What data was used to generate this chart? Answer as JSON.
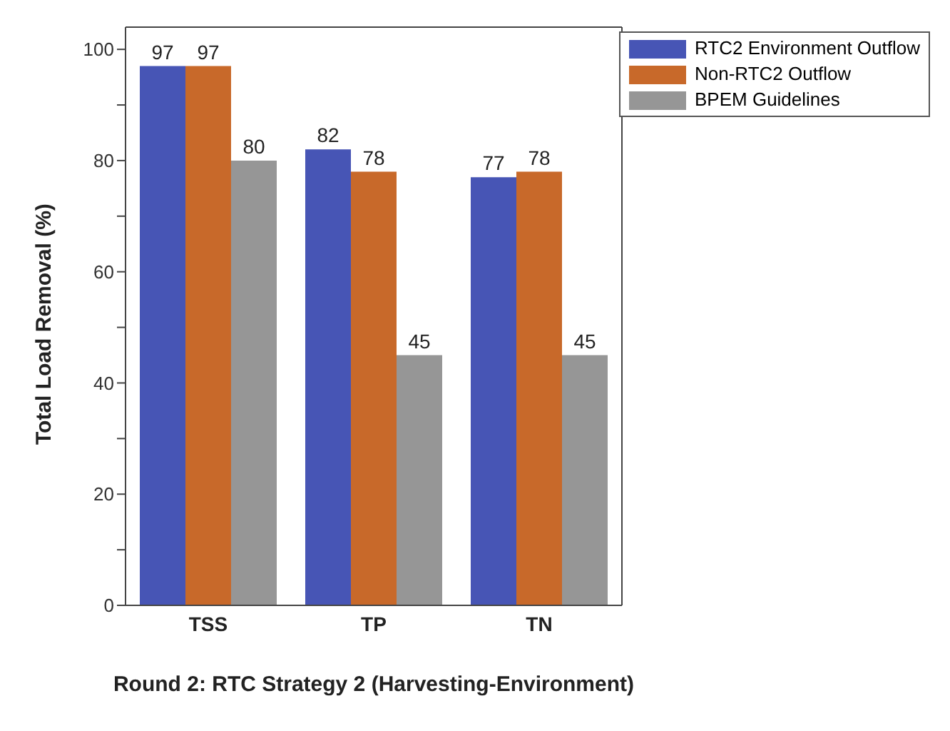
{
  "chart_data": {
    "type": "bar",
    "xlabel": "Round 2: RTC Strategy 2 (Harvesting-Environment)",
    "ylabel": "Total Load Removal (%)",
    "categories": [
      "TSS",
      "TP",
      "TN"
    ],
    "series": [
      {
        "name": "RTC2 Environment Outflow",
        "color": "#4755b5",
        "values": [
          97,
          82,
          77
        ]
      },
      {
        "name": "Non-RTC2 Outflow",
        "color": "#c8692a",
        "values": [
          97,
          78,
          78
        ]
      },
      {
        "name": "BPEM Guidelines",
        "color": "#969696",
        "values": [
          80,
          45,
          45
        ]
      }
    ],
    "ylim": [
      0,
      104
    ],
    "yticks": [
      0,
      {
        "value": 10,
        "label": null
      },
      20,
      {
        "value": 30,
        "label": null
      },
      40,
      {
        "value": 50,
        "label": null
      },
      60,
      {
        "value": 70,
        "label": null
      },
      80,
      {
        "value": 90,
        "label": null
      },
      100
    ],
    "data_labels": true,
    "legend": "top right",
    "grid": false
  }
}
